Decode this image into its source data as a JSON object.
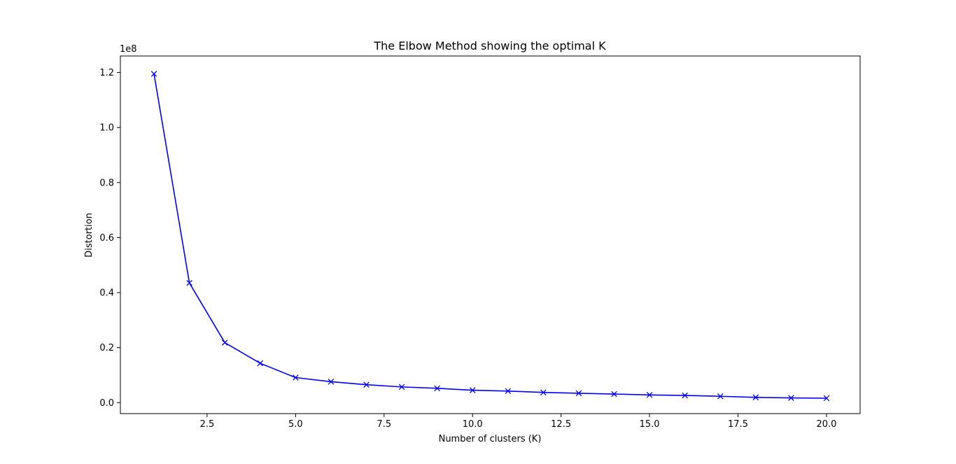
{
  "chart_data": {
    "type": "line",
    "title": "The Elbow Method showing the optimal K",
    "xlabel": "Number of clusters (K)",
    "ylabel": "Distortion",
    "y_offset_label": "1e8",
    "y_scale_factor": 100000000,
    "xlim": [
      0.05,
      20.95
    ],
    "ylim": [
      -0.04,
      1.26
    ],
    "x_ticks": [
      2.5,
      5.0,
      7.5,
      10.0,
      12.5,
      15.0,
      17.5,
      20.0
    ],
    "x_tick_labels": [
      "2.5",
      "5.0",
      "7.5",
      "10.0",
      "12.5",
      "15.0",
      "17.5",
      "20.0"
    ],
    "y_ticks": [
      0.0,
      0.2,
      0.4,
      0.6,
      0.8,
      1.0,
      1.2
    ],
    "y_tick_labels": [
      "0.0",
      "0.2",
      "0.4",
      "0.6",
      "0.8",
      "1.0",
      "1.2"
    ],
    "grid": false,
    "legend": "none",
    "line_color": "#0000ff",
    "marker": "x",
    "series": [
      {
        "x": [
          1,
          2,
          3,
          4,
          5,
          6,
          7,
          8,
          9,
          10,
          11,
          12,
          13,
          14,
          15,
          16,
          17,
          18,
          19,
          20
        ],
        "values": [
          1.195,
          0.435,
          0.218,
          0.143,
          0.091,
          0.076,
          0.065,
          0.057,
          0.052,
          0.045,
          0.042,
          0.037,
          0.034,
          0.031,
          0.028,
          0.026,
          0.023,
          0.019,
          0.017,
          0.016
        ]
      }
    ]
  }
}
